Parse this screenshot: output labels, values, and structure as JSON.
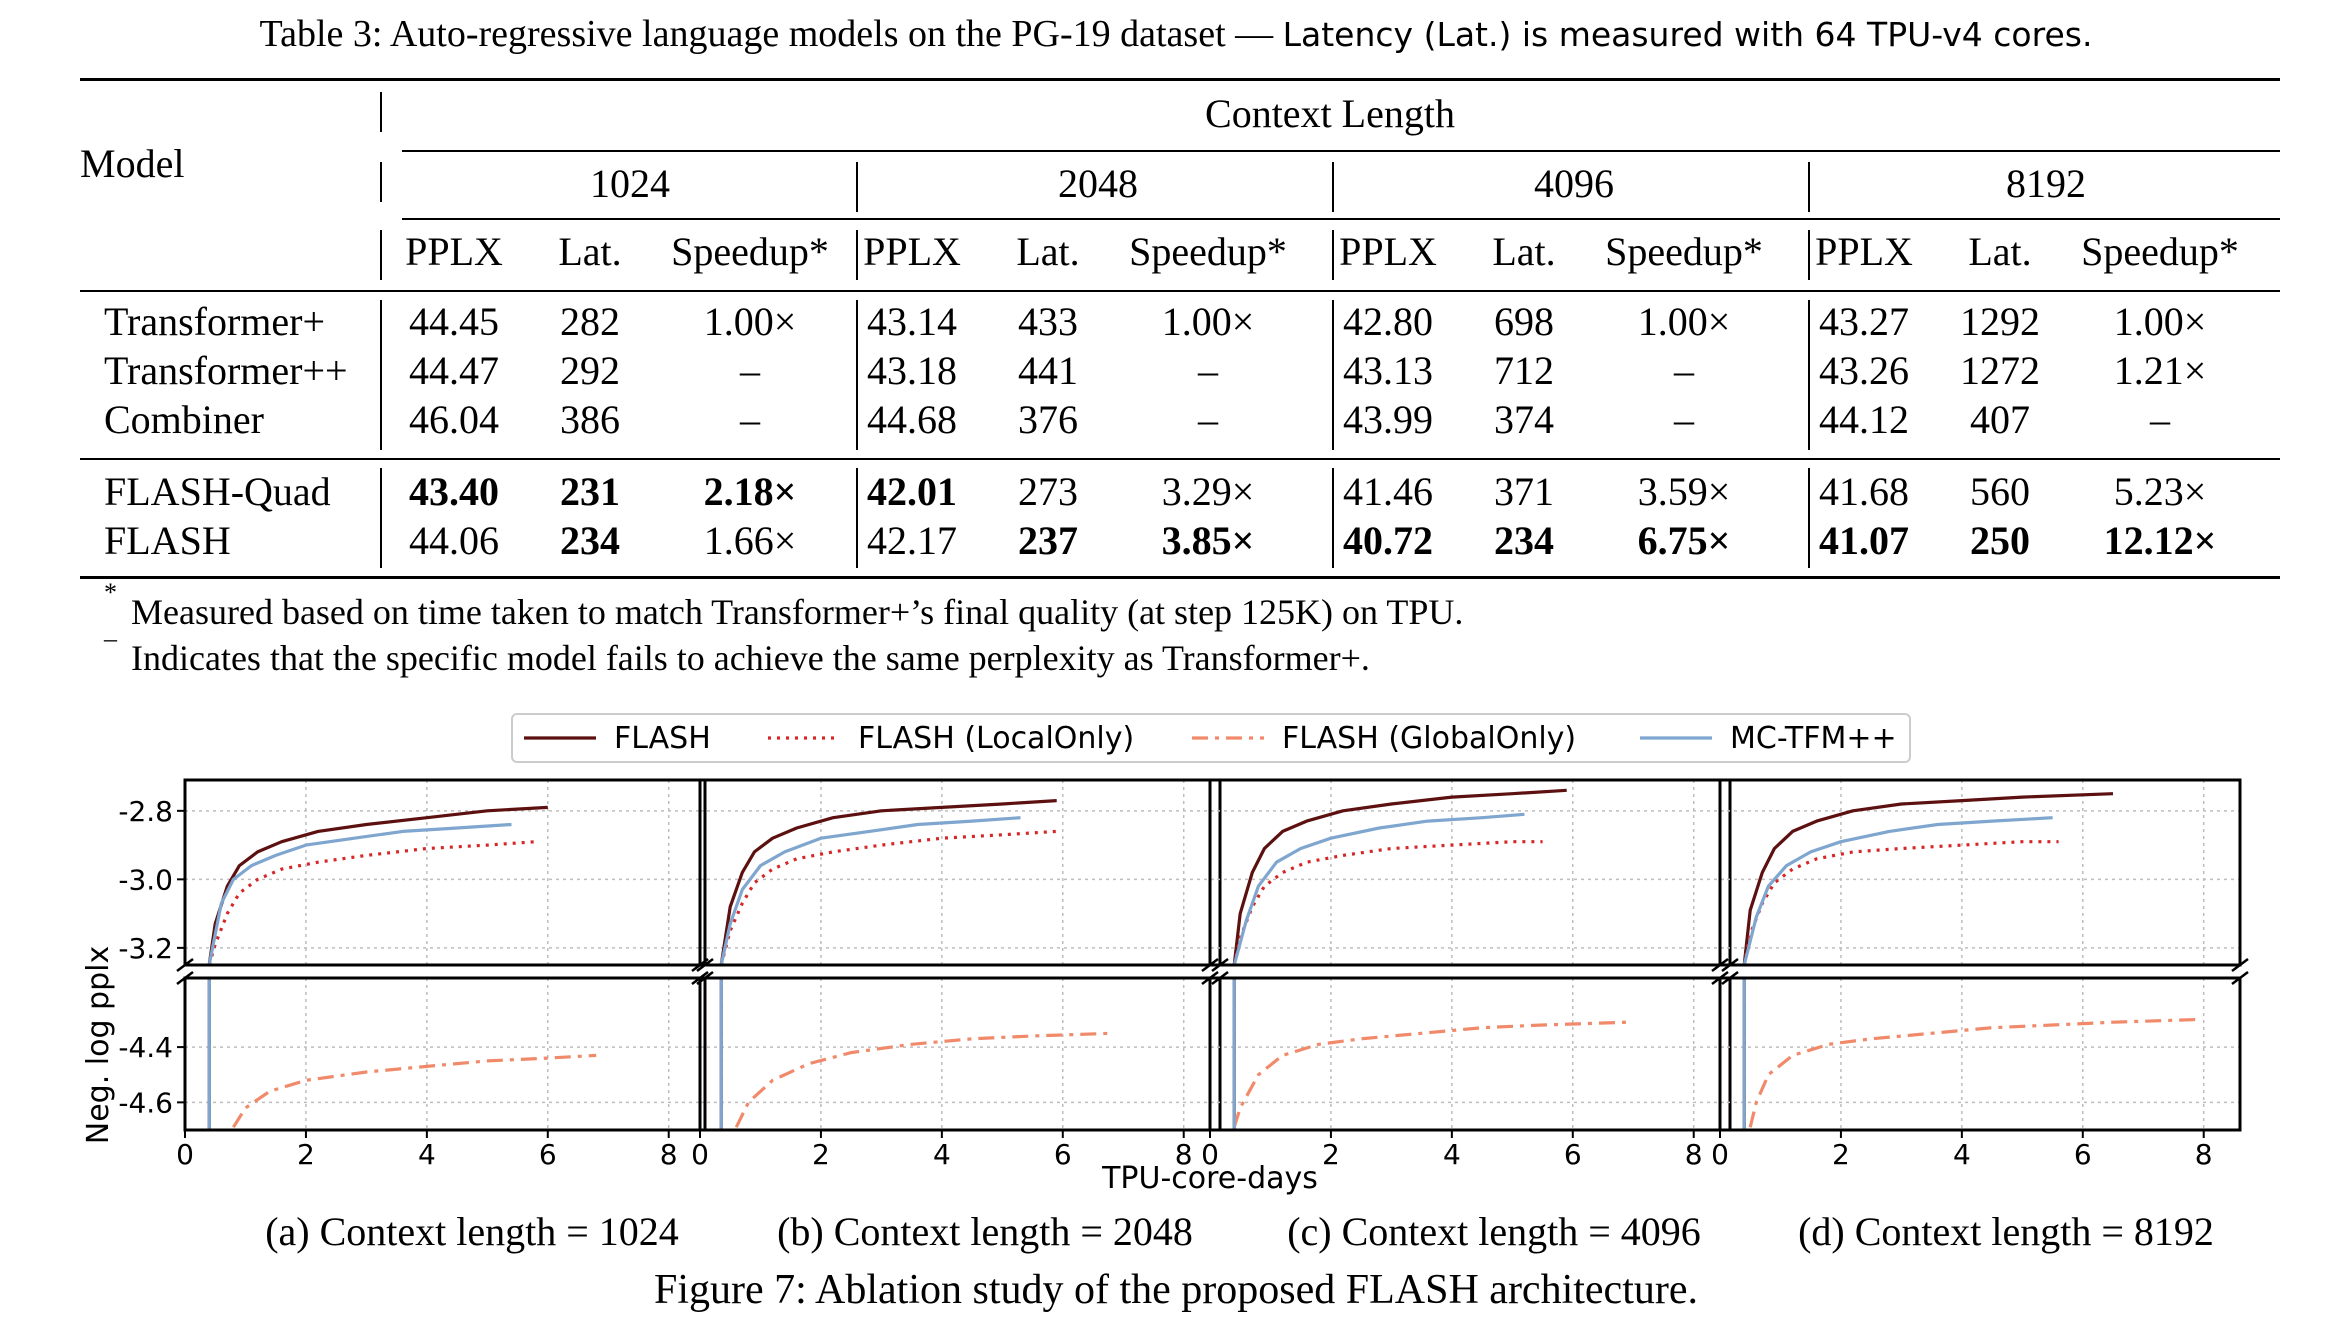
{
  "table": {
    "caption_main": "Table 3: Auto-regressive language models on the PG-19 dataset — ",
    "caption_note": "Latency (Lat.) is measured with 64 TPU-v4 cores.",
    "model_header": "Model",
    "context_header": "Context Length",
    "contexts": [
      "1024",
      "2048",
      "4096",
      "8192"
    ],
    "metrics": [
      "PPLX",
      "Lat.",
      "Speedup*"
    ],
    "rows": [
      {
        "model": "Transformer+",
        "cells": [
          [
            "44.45",
            "282",
            "1.00×"
          ],
          [
            "43.14",
            "433",
            "1.00×"
          ],
          [
            "42.80",
            "698",
            "1.00×"
          ],
          [
            "43.27",
            "1292",
            "1.00×"
          ]
        ],
        "bold": []
      },
      {
        "model": "Transformer++",
        "cells": [
          [
            "44.47",
            "292",
            "–"
          ],
          [
            "43.18",
            "441",
            "–"
          ],
          [
            "43.13",
            "712",
            "–"
          ],
          [
            "43.26",
            "1272",
            "1.21×"
          ]
        ],
        "bold": []
      },
      {
        "model": "Combiner",
        "cells": [
          [
            "46.04",
            "386",
            "–"
          ],
          [
            "44.68",
            "376",
            "–"
          ],
          [
            "43.99",
            "374",
            "–"
          ],
          [
            "44.12",
            "407",
            "–"
          ]
        ],
        "bold": []
      },
      {
        "model": "FLASH-Quad",
        "cells": [
          [
            "43.40",
            "231",
            "2.18×"
          ],
          [
            "42.01",
            "273",
            "3.29×"
          ],
          [
            "41.46",
            "371",
            "3.59×"
          ],
          [
            "41.68",
            "560",
            "5.23×"
          ]
        ],
        "bold": [
          "0-0",
          "0-1",
          "0-2",
          "1-0"
        ]
      },
      {
        "model": "FLASH",
        "cells": [
          [
            "44.06",
            "234",
            "1.66×"
          ],
          [
            "42.17",
            "237",
            "3.85×"
          ],
          [
            "40.72",
            "234",
            "6.75×"
          ],
          [
            "41.07",
            "250",
            "12.12×"
          ]
        ],
        "bold": [
          "0-1",
          "1-1",
          "1-2",
          "2-0",
          "2-1",
          "2-2",
          "3-0",
          "3-1",
          "3-2"
        ]
      }
    ],
    "footnote_star_mark": "*",
    "footnote_star": "Measured based on time taken to match Transformer+’s final quality (at step 125K) on TPU.",
    "footnote_dash_mark": "–",
    "footnote_dash": "Indicates that the specific model fails to achieve the same perplexity as Transformer+."
  },
  "figure": {
    "legend": [
      "FLASH",
      "FLASH (LocalOnly)",
      "FLASH (GlobalOnly)",
      "MC-TFM++"
    ],
    "ylabel": "Neg. log pplx",
    "xlabel": "TPU-core-days",
    "subcaptions": [
      "(a) Context length = 1024",
      "(b) Context length = 2048",
      "(c) Context length = 4096",
      "(d) Context length = 8192"
    ],
    "caption": "Figure 7: Ablation study of the proposed FLASH architecture.",
    "colors": {
      "flash": "#5c1010",
      "local": "#d62728",
      "global": "#f08a6a",
      "mctfm": "#7fa6cf"
    }
  },
  "chart_data": [
    {
      "type": "line",
      "title": "(a) Context length = 1024",
      "xlabel": "TPU-core-days",
      "ylabel": "Neg. log pplx",
      "xlim": [
        0,
        8
      ],
      "ylim_upper": [
        -3.25,
        -2.71
      ],
      "ylim_lower": [
        -4.7,
        -4.15
      ],
      "yticks": [
        -4.6,
        -4.4,
        -3.2,
        -3.0,
        -2.8
      ],
      "xticks": [
        0,
        2,
        4,
        6,
        8
      ],
      "series": [
        {
          "name": "FLASH",
          "x": [
            0.4,
            0.5,
            0.7,
            0.9,
            1.2,
            1.6,
            2.2,
            3,
            4,
            5,
            6
          ],
          "y": [
            -3.25,
            -3.13,
            -3.02,
            -2.96,
            -2.92,
            -2.89,
            -2.86,
            -2.84,
            -2.82,
            -2.8,
            -2.79
          ]
        },
        {
          "name": "FLASH (LocalOnly)",
          "x": [
            0.4,
            0.5,
            0.7,
            0.9,
            1.2,
            1.6,
            2.2,
            3,
            4,
            5,
            5.8
          ],
          "y": [
            -3.25,
            -3.19,
            -3.1,
            -3.04,
            -3.0,
            -2.97,
            -2.95,
            -2.93,
            -2.91,
            -2.9,
            -2.89
          ]
        },
        {
          "name": "FLASH (GlobalOnly)",
          "x": [
            0.8,
            1.0,
            1.4,
            2,
            3,
            4,
            5,
            6,
            6.8
          ],
          "y": [
            -4.69,
            -4.62,
            -4.56,
            -4.52,
            -4.49,
            -4.47,
            -4.45,
            -4.44,
            -4.43
          ]
        },
        {
          "name": "MC-TFM++",
          "x": [
            0.4,
            0.6,
            0.8,
            1.1,
            1.5,
            2,
            2.8,
            3.6,
            4.5,
            5.4
          ],
          "y": [
            -3.25,
            -3.07,
            -3.0,
            -2.96,
            -2.93,
            -2.9,
            -2.88,
            -2.86,
            -2.85,
            -2.84
          ]
        }
      ]
    },
    {
      "type": "line",
      "title": "(b) Context length = 2048",
      "xlabel": "TPU-core-days",
      "ylabel": "Neg. log pplx",
      "xlim": [
        0,
        8
      ],
      "ylim_upper": [
        -3.25,
        -2.71
      ],
      "ylim_lower": [
        -4.7,
        -4.15
      ],
      "series": [
        {
          "name": "FLASH",
          "x": [
            0.35,
            0.5,
            0.7,
            0.9,
            1.2,
            1.6,
            2.2,
            3,
            4,
            5,
            5.9
          ],
          "y": [
            -3.25,
            -3.08,
            -2.98,
            -2.92,
            -2.88,
            -2.85,
            -2.82,
            -2.8,
            -2.79,
            -2.78,
            -2.77
          ]
        },
        {
          "name": "FLASH (LocalOnly)",
          "x": [
            0.35,
            0.5,
            0.7,
            0.9,
            1.2,
            1.6,
            2.2,
            3,
            4,
            5,
            5.9
          ],
          "y": [
            -3.25,
            -3.15,
            -3.07,
            -3.01,
            -2.97,
            -2.94,
            -2.92,
            -2.9,
            -2.88,
            -2.87,
            -2.86
          ]
        },
        {
          "name": "FLASH (GlobalOnly)",
          "x": [
            0.6,
            0.8,
            1.2,
            1.8,
            2.5,
            3.5,
            4.5,
            5.5,
            6.8
          ],
          "y": [
            -4.69,
            -4.6,
            -4.52,
            -4.46,
            -4.42,
            -4.39,
            -4.37,
            -4.36,
            -4.35
          ]
        },
        {
          "name": "MC-TFM++",
          "x": [
            0.35,
            0.5,
            0.7,
            1.0,
            1.4,
            2,
            2.8,
            3.6,
            4.5,
            5.3
          ],
          "y": [
            -3.25,
            -3.13,
            -3.03,
            -2.96,
            -2.92,
            -2.88,
            -2.86,
            -2.84,
            -2.83,
            -2.82
          ]
        }
      ]
    },
    {
      "type": "line",
      "title": "(c) Context length = 4096",
      "xlabel": "TPU-core-days",
      "ylabel": "Neg. log pplx",
      "xlim": [
        0,
        8
      ],
      "ylim_upper": [
        -3.25,
        -2.71
      ],
      "ylim_lower": [
        -4.7,
        -4.15
      ],
      "series": [
        {
          "name": "FLASH",
          "x": [
            0.4,
            0.5,
            0.7,
            0.9,
            1.2,
            1.6,
            2.2,
            3,
            4,
            5,
            5.9
          ],
          "y": [
            -3.25,
            -3.1,
            -2.98,
            -2.91,
            -2.86,
            -2.83,
            -2.8,
            -2.78,
            -2.76,
            -2.75,
            -2.74
          ]
        },
        {
          "name": "FLASH (LocalOnly)",
          "x": [
            0.4,
            0.5,
            0.7,
            0.9,
            1.2,
            1.6,
            2.2,
            3,
            4,
            5,
            5.5
          ],
          "y": [
            -3.25,
            -3.17,
            -3.08,
            -3.02,
            -2.98,
            -2.95,
            -2.93,
            -2.91,
            -2.9,
            -2.89,
            -2.89
          ]
        },
        {
          "name": "FLASH (GlobalOnly)",
          "x": [
            0.4,
            0.5,
            0.8,
            1.2,
            1.8,
            2.5,
            3.5,
            4.5,
            5.5,
            6.9
          ],
          "y": [
            -4.69,
            -4.62,
            -4.5,
            -4.43,
            -4.39,
            -4.37,
            -4.35,
            -4.33,
            -4.32,
            -4.31
          ]
        },
        {
          "name": "MC-TFM++",
          "x": [
            0.4,
            0.6,
            0.8,
            1.1,
            1.5,
            2,
            2.8,
            3.6,
            4.5,
            5.2
          ],
          "y": [
            -3.25,
            -3.12,
            -3.02,
            -2.95,
            -2.91,
            -2.88,
            -2.85,
            -2.83,
            -2.82,
            -2.81
          ]
        }
      ]
    },
    {
      "type": "line",
      "title": "(d) Context length = 8192",
      "xlabel": "TPU-core-days",
      "ylabel": "Neg. log pplx",
      "xlim": [
        0,
        8
      ],
      "ylim_upper": [
        -3.25,
        -2.71
      ],
      "ylim_lower": [
        -4.7,
        -4.15
      ],
      "series": [
        {
          "name": "FLASH",
          "x": [
            0.4,
            0.5,
            0.7,
            0.9,
            1.2,
            1.6,
            2.2,
            3,
            4,
            5,
            6.5
          ],
          "y": [
            -3.25,
            -3.09,
            -2.98,
            -2.91,
            -2.86,
            -2.83,
            -2.8,
            -2.78,
            -2.77,
            -2.76,
            -2.75
          ]
        },
        {
          "name": "FLASH (LocalOnly)",
          "x": [
            0.4,
            0.5,
            0.7,
            0.9,
            1.2,
            1.6,
            2.2,
            3,
            4,
            5,
            5.6
          ],
          "y": [
            -3.25,
            -3.16,
            -3.07,
            -3.01,
            -2.97,
            -2.94,
            -2.92,
            -2.91,
            -2.9,
            -2.89,
            -2.89
          ]
        },
        {
          "name": "FLASH (GlobalOnly)",
          "x": [
            0.5,
            0.6,
            0.8,
            1.2,
            1.8,
            2.5,
            3.5,
            4.5,
            5.5,
            6.5,
            7.9
          ],
          "y": [
            -4.69,
            -4.6,
            -4.5,
            -4.43,
            -4.39,
            -4.37,
            -4.35,
            -4.33,
            -4.32,
            -4.31,
            -4.3
          ]
        },
        {
          "name": "MC-TFM++",
          "x": [
            0.4,
            0.6,
            0.8,
            1.1,
            1.5,
            2,
            2.8,
            3.6,
            4.5,
            5.5
          ],
          "y": [
            -3.25,
            -3.11,
            -3.02,
            -2.96,
            -2.92,
            -2.89,
            -2.86,
            -2.84,
            -2.83,
            -2.82
          ]
        }
      ]
    }
  ]
}
